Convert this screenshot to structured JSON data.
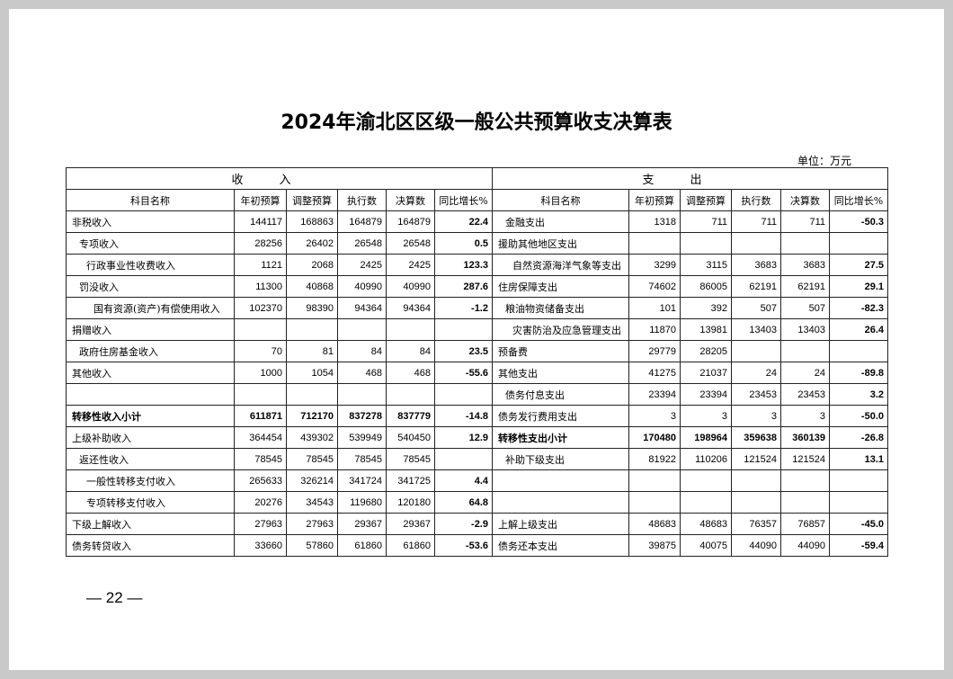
{
  "title": "2024年渝北区区级一般公共预算收支决算表",
  "unit": "单位：万元",
  "table": {
    "groups": [
      "收入",
      "支出"
    ],
    "headers": [
      "科目名称",
      "年初预算",
      "调整预算",
      "执行数",
      "决算数",
      "同比增长%",
      "科目名称",
      "年初预算",
      "调整预算",
      "执行数",
      "决算数",
      "同比增长%"
    ],
    "rows": [
      [
        "非税收入",
        "144117",
        "168863",
        "164879",
        "164879",
        "22.4",
        "金融支出",
        "1318",
        "711",
        "711",
        "711",
        "-50.3"
      ],
      [
        "专项收入",
        "28256",
        "26402",
        "26548",
        "26548",
        "0.5",
        "援助其他地区支出",
        null,
        null,
        null,
        null,
        null
      ],
      [
        "行政事业性收费收入",
        "1121",
        "2068",
        "2425",
        "2425",
        "123.3",
        "自然资源海洋气象等支出",
        "3299",
        "3115",
        "3683",
        "3683",
        "27.5"
      ],
      [
        "罚没收入",
        "11300",
        "40868",
        "40990",
        "40990",
        "287.6",
        "住房保障支出",
        "74602",
        "86005",
        "62191",
        "62191",
        "29.1"
      ],
      [
        "国有资源(资产)有偿使用收入",
        "102370",
        "98390",
        "94364",
        "94364",
        "-1.2",
        "粮油物资储备支出",
        "101",
        "392",
        "507",
        "507",
        "-82.3"
      ],
      [
        "捐赠收入",
        null,
        null,
        null,
        null,
        null,
        "灾害防治及应急管理支出",
        "11870",
        "13981",
        "13403",
        "13403",
        "26.4"
      ],
      [
        "政府住房基金收入",
        "70",
        "81",
        "84",
        "84",
        "23.5",
        "预备费",
        "29779",
        "28205",
        null,
        null,
        null
      ],
      [
        "其他收入",
        "1000",
        "1054",
        "468",
        "468",
        "-55.6",
        "其他支出",
        "41275",
        "21037",
        "24",
        "24",
        "-89.8"
      ],
      [
        null,
        null,
        null,
        null,
        null,
        null,
        "债务付息支出",
        "23394",
        "23394",
        "23453",
        "23453",
        "3.2"
      ],
      [
        "转移性收入小计",
        "611871",
        "712170",
        "837278",
        "837779",
        "-14.8",
        "债务发行费用支出",
        "3",
        "3",
        "3",
        "3",
        "-50.0"
      ],
      [
        "上级补助收入",
        "364454",
        "439302",
        "539949",
        "540450",
        "12.9",
        "转移性支出小计",
        "170480",
        "198964",
        "359638",
        "360139",
        "-26.8"
      ],
      [
        "返还性收入",
        "78545",
        "78545",
        "78545",
        "78545",
        null,
        "补助下级支出",
        "81922",
        "110206",
        "121524",
        "121524",
        "13.1"
      ],
      [
        "一般性转移支付收入",
        "265633",
        "326214",
        "341724",
        "341725",
        "4.4",
        null,
        null,
        null,
        null,
        null,
        null
      ],
      [
        "专项转移支付收入",
        "20276",
        "34543",
        "119680",
        "120180",
        "64.8",
        null,
        null,
        null,
        null,
        null,
        null
      ],
      [
        "下级上解收入",
        "27963",
        "27963",
        "29367",
        "29367",
        "-2.9",
        "上解上级支出",
        "48683",
        "48683",
        "76357",
        "76857",
        "-45.0"
      ],
      [
        "债务转贷收入",
        "33660",
        "57860",
        "61860",
        "61860",
        "-53.6",
        "债务还本支出",
        "39875",
        "40075",
        "44090",
        "44090",
        "-59.4"
      ]
    ]
  },
  "page_number": "22"
}
